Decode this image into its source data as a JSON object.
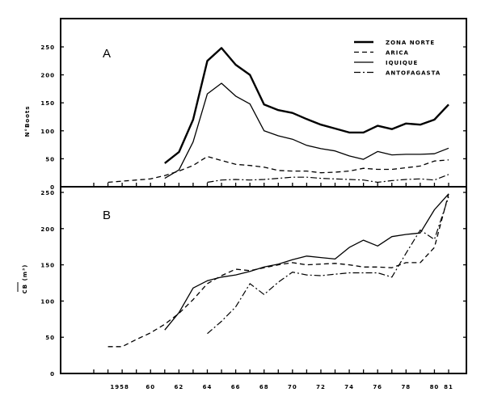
{
  "chart_data": [
    {
      "type": "line",
      "panel_label": "A",
      "ylabel": "N°Boots",
      "ylim": [
        0,
        250
      ],
      "yticks": [
        "0",
        "50",
        "100",
        "150",
        "200",
        "250"
      ],
      "xlim": [
        1955,
        1981
      ],
      "legend_placement": "top-right",
      "series": [
        {
          "name": "ZONA NORTE",
          "style": "thick-solid",
          "x": [
            1961,
            1962,
            1963,
            1964,
            1965,
            1966,
            1967,
            1968,
            1969,
            1970,
            1971,
            1972,
            1973,
            1974,
            1975,
            1976,
            1977,
            1978,
            1979,
            1980,
            1981
          ],
          "values": [
            42,
            62,
            120,
            225,
            248,
            218,
            200,
            147,
            137,
            132,
            121,
            111,
            104,
            97,
            97,
            109,
            103,
            113,
            111,
            120,
            147
          ]
        },
        {
          "name": "ARICA",
          "style": "dashed",
          "x": [
            1957,
            1958,
            1959,
            1960,
            1961,
            1962,
            1963,
            1964,
            1965,
            1966,
            1967,
            1968,
            1969,
            1970,
            1971,
            1972,
            1973,
            1974,
            1975,
            1976,
            1977,
            1978,
            1979,
            1980,
            1981
          ],
          "values": [
            8,
            10,
            12,
            14,
            20,
            28,
            38,
            54,
            47,
            40,
            38,
            35,
            29,
            28,
            28,
            25,
            26,
            28,
            33,
            31,
            31,
            34,
            37,
            46,
            48
          ]
        },
        {
          "name": "IQUIQUE",
          "style": "solid",
          "x": [
            1961,
            1962,
            1963,
            1964,
            1965,
            1966,
            1967,
            1968,
            1969,
            1970,
            1971,
            1972,
            1973,
            1974,
            1975,
            1976,
            1977,
            1978,
            1979,
            1980,
            1981
          ],
          "values": [
            15,
            30,
            80,
            166,
            185,
            162,
            148,
            100,
            91,
            85,
            74,
            68,
            64,
            55,
            49,
            63,
            57,
            58,
            58,
            59,
            69
          ]
        },
        {
          "name": "ANTOFAGASTA",
          "style": "dash-dot",
          "x": [
            1964,
            1965,
            1966,
            1967,
            1968,
            1969,
            1970,
            1971,
            1972,
            1973,
            1974,
            1975,
            1976,
            1977,
            1978,
            1979,
            1980,
            1981
          ],
          "values": [
            8,
            12,
            13,
            12,
            13,
            15,
            17,
            17,
            15,
            14,
            13,
            12,
            8,
            11,
            13,
            14,
            12,
            22
          ]
        }
      ]
    },
    {
      "type": "line",
      "panel_label": "B",
      "ylabel": "CB (m³)",
      "ylim": [
        0,
        250
      ],
      "yticks": [
        "0",
        "50",
        "100",
        "150",
        "200",
        "250"
      ],
      "xlim": [
        1955,
        1981
      ],
      "xticks": [
        {
          "year": 1958,
          "label": "1958"
        },
        {
          "year": 1960,
          "label": "60"
        },
        {
          "year": 1962,
          "label": "62"
        },
        {
          "year": 1964,
          "label": "64"
        },
        {
          "year": 1966,
          "label": "66"
        },
        {
          "year": 1968,
          "label": "68"
        },
        {
          "year": 1970,
          "label": "70"
        },
        {
          "year": 1972,
          "label": "72"
        },
        {
          "year": 1974,
          "label": "74"
        },
        {
          "year": 1976,
          "label": "76"
        },
        {
          "year": 1978,
          "label": "78"
        },
        {
          "year": 1980,
          "label": "80"
        },
        {
          "year": 1981,
          "label": "81"
        }
      ],
      "series": [
        {
          "style": "solid",
          "x": [
            1961,
            1962,
            1963,
            1964,
            1965,
            1966,
            1967,
            1968,
            1969,
            1970,
            1971,
            1972,
            1973,
            1974,
            1975,
            1976,
            1977,
            1978,
            1979,
            1980,
            1981
          ],
          "values": [
            60,
            84,
            118,
            128,
            133,
            136,
            141,
            147,
            151,
            157,
            162,
            160,
            158,
            174,
            184,
            176,
            189,
            192,
            194,
            226,
            248
          ]
        },
        {
          "style": "dashed",
          "x": [
            1957,
            1958,
            1959,
            1960,
            1961,
            1962,
            1963,
            1964,
            1965,
            1966,
            1967,
            1968,
            1969,
            1970,
            1971,
            1972,
            1973,
            1974,
            1975,
            1976,
            1977,
            1978,
            1979,
            1980,
            1981
          ],
          "values": [
            37,
            37,
            47,
            56,
            68,
            83,
            102,
            124,
            135,
            144,
            142,
            146,
            150,
            153,
            150,
            151,
            152,
            150,
            147,
            147,
            146,
            153,
            153,
            174,
            248
          ]
        },
        {
          "style": "dash-dot",
          "x": [
            1964,
            1965,
            1966,
            1967,
            1968,
            1969,
            1970,
            1971,
            1972,
            1973,
            1974,
            1975,
            1976,
            1977,
            1978,
            1979,
            1980,
            1981
          ],
          "values": [
            55,
            72,
            92,
            124,
            109,
            126,
            140,
            136,
            135,
            137,
            139,
            139,
            139,
            133,
            166,
            198,
            185,
            244
          ]
        }
      ]
    }
  ]
}
